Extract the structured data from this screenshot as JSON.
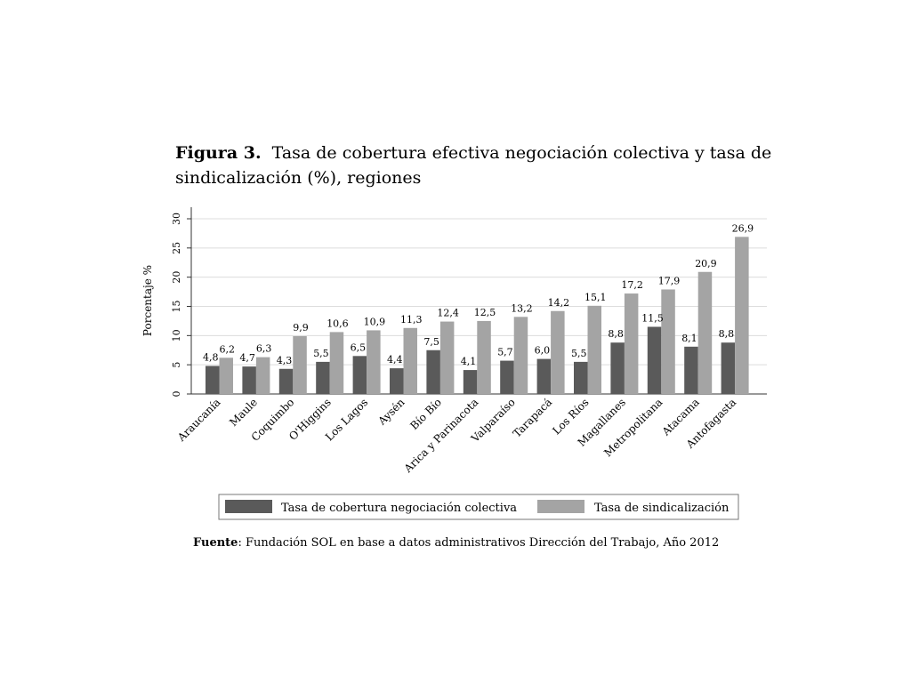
{
  "caption": {
    "figure_label": "Figura 3.",
    "title": "Tasa de cobertura efectiva negociación colectiva y tasa de sindicalización (%), regiones"
  },
  "source": {
    "label": "Fuente",
    "text": ": Fundación SOL en base a datos administrativos Dirección del Trabajo, Año 2012"
  },
  "colors": {
    "series1": "#5a5a5a",
    "series2": "#a4a4a4",
    "grid": "#dcdcdc",
    "axis": "#333333"
  },
  "chart_data": {
    "type": "bar",
    "ylabel": "Porcentaje %",
    "ylim": [
      0,
      30
    ],
    "yticks": [
      0,
      5,
      10,
      15,
      20,
      25,
      30
    ],
    "grid": true,
    "legend_position": "bottom",
    "categories": [
      "Araucanía",
      "Maule",
      "Coquimbo",
      "O'Higgins",
      "Los Lagos",
      "Aysén",
      "Bío Bío",
      "Arica y Parinacota",
      "Valparaíso",
      "Tarapacá",
      "Los Ríos",
      "Magallanes",
      "Metropolitana",
      "Atacama",
      "Antofagasta"
    ],
    "series": [
      {
        "name": "Tasa de cobertura negociación colectiva",
        "values": [
          4.8,
          4.7,
          4.3,
          5.5,
          6.5,
          4.4,
          7.5,
          4.1,
          5.7,
          6.0,
          5.5,
          8.8,
          11.5,
          8.1,
          8.8
        ],
        "labels": [
          "4,8",
          "4,7",
          "4,3",
          "5,5",
          "6,5",
          "4,4",
          "7,5",
          "4,1",
          "5,7",
          "6,0",
          "5,5",
          "8,8",
          "11,5",
          "8,1",
          "8,8"
        ]
      },
      {
        "name": "Tasa de sindicalización",
        "values": [
          6.2,
          6.3,
          9.9,
          10.6,
          10.9,
          11.3,
          12.4,
          12.5,
          13.2,
          14.2,
          15.1,
          17.2,
          17.9,
          20.9,
          26.9
        ],
        "labels": [
          "6,2",
          "6,3",
          "9,9",
          "10,6",
          "10,9",
          "11,3",
          "12,4",
          "12,5",
          "13,2",
          "14,2",
          "15,1",
          "17,2",
          "17,9",
          "20,9",
          "26,9"
        ]
      }
    ]
  }
}
